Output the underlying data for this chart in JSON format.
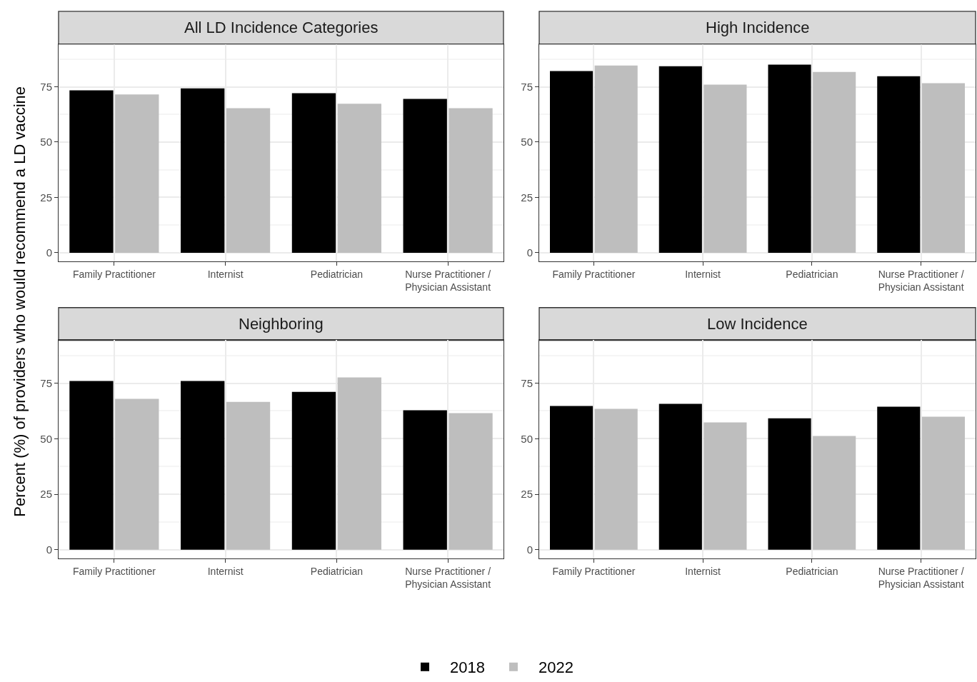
{
  "chart_data": [
    {
      "type": "bar",
      "title": "All LD Incidence Categories",
      "ylabel": "Percent (%) of providers who would recommend a LD vaccine",
      "categories": [
        "Family Practitioner",
        "Internist",
        "Pediatrician",
        "Nurse Practitioner /\nPhysician Assistant"
      ],
      "series": [
        {
          "name": "2018",
          "color": "#000000",
          "values": [
            73.4,
            74.3,
            72.1,
            69.5
          ]
        },
        {
          "name": "2022",
          "color": "#bebebe",
          "values": [
            71.5,
            65.3,
            67.3,
            65.3
          ]
        }
      ],
      "ylim": [
        -3.9,
        94.3
      ],
      "yticks": [
        0,
        25,
        50,
        75
      ],
      "grid": true,
      "legend": "bottom"
    },
    {
      "type": "bar",
      "title": "High Incidence",
      "categories": [
        "Family Practitioner",
        "Internist",
        "Pediatrician",
        "Nurse Practitioner /\nPhysician Assistant"
      ],
      "series": [
        {
          "name": "2018",
          "color": "#000000",
          "values": [
            82.1,
            84.3,
            85.0,
            79.8
          ]
        },
        {
          "name": "2022",
          "color": "#bebebe",
          "values": [
            84.6,
            76.0,
            81.7,
            76.6
          ]
        }
      ],
      "ylim": [
        -3.9,
        94.3
      ],
      "yticks": [
        0,
        25,
        50,
        75
      ],
      "grid": true
    },
    {
      "type": "bar",
      "title": "Neighboring",
      "categories": [
        "Family Practitioner",
        "Internist",
        "Pediatrician",
        "Nurse Practitioner /\nPhysician Assistant"
      ],
      "series": [
        {
          "name": "2018",
          "color": "#000000",
          "values": [
            76.0,
            76.0,
            71.1,
            62.8
          ]
        },
        {
          "name": "2022",
          "color": "#bebebe",
          "values": [
            67.9,
            66.6,
            77.6,
            61.5
          ]
        }
      ],
      "ylim": [
        -3.9,
        94.3
      ],
      "yticks": [
        0,
        25,
        50,
        75
      ],
      "grid": true
    },
    {
      "type": "bar",
      "title": "Low Incidence",
      "categories": [
        "Family Practitioner",
        "Internist",
        "Pediatrician",
        "Nurse Practitioner /\nPhysician Assistant"
      ],
      "series": [
        {
          "name": "2018",
          "color": "#000000",
          "values": [
            64.7,
            65.7,
            59.2,
            64.4
          ]
        },
        {
          "name": "2022",
          "color": "#bebebe",
          "values": [
            63.4,
            57.3,
            51.2,
            59.9
          ]
        }
      ],
      "ylim": [
        -3.9,
        94.3
      ],
      "yticks": [
        0,
        25,
        50,
        75
      ],
      "grid": true
    }
  ]
}
